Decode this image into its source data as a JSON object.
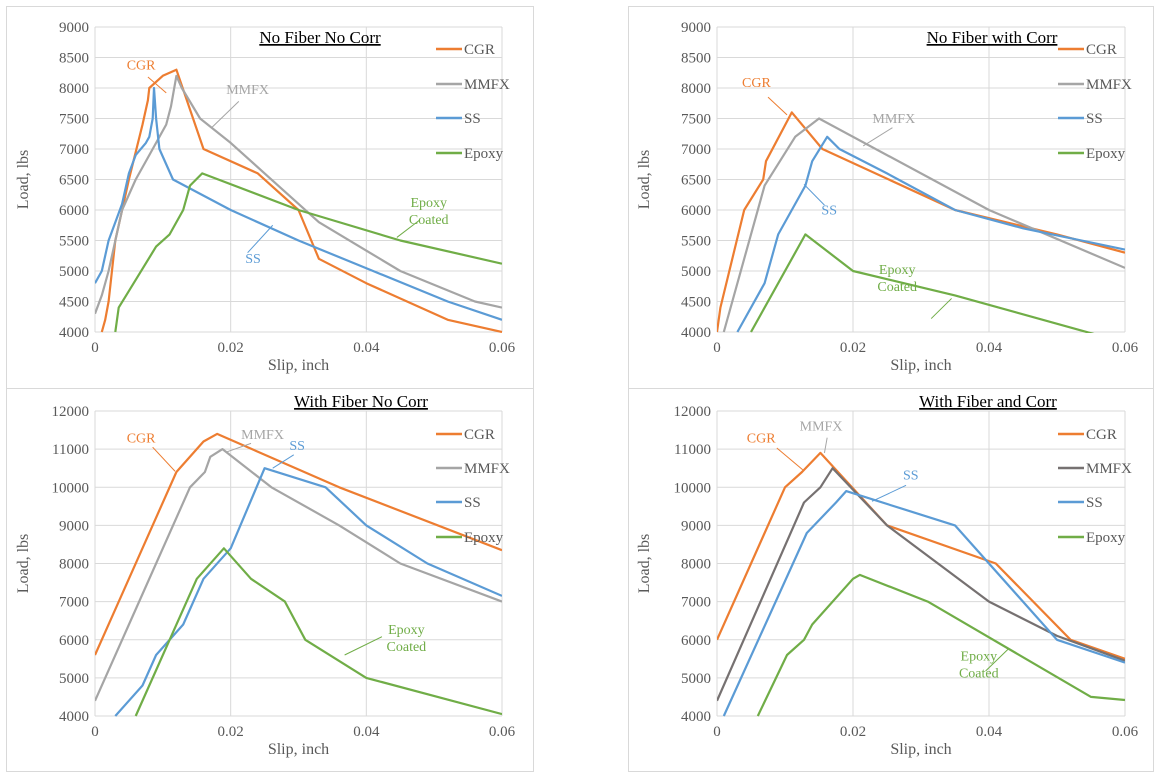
{
  "colors": {
    "CGR": "#ed7d31",
    "MMFX_light": "#a5a5a5",
    "MMFX_dark": "#767171",
    "SS": "#5b9bd5",
    "Epoxy": "#70ad47",
    "grid": "#d9d9d9",
    "text": "#595959"
  },
  "chart_data": [
    {
      "type": "line",
      "title": "No Fiber No Corr",
      "xlabel": "Slip, inch",
      "ylabel": "Load, lbs",
      "xlim": [
        0,
        0.06
      ],
      "ylim": [
        4000,
        9000
      ],
      "xticks": [
        0,
        0.02,
        0.04,
        0.06
      ],
      "xtick_labels": [
        "0",
        "0.02",
        "0.04",
        "0.06"
      ],
      "yticks": [
        4000,
        4500,
        5000,
        5500,
        6000,
        6500,
        7000,
        7500,
        8000,
        8500,
        9000
      ],
      "ytick_labels": [
        "4000",
        "4500",
        "5000",
        "5500",
        "6000",
        "6500",
        "7000",
        "7500",
        "8000",
        "8500",
        "9000"
      ],
      "grid": true,
      "legend_position": "right",
      "series": [
        {
          "name": "CGR",
          "color": "#ed7d31",
          "x": [
            0.001,
            0.0015,
            0.002,
            0.003,
            0.005,
            0.007,
            0.0078,
            0.008,
            0.01,
            0.012,
            0.016,
            0.024,
            0.03,
            0.033,
            0.04,
            0.052,
            0.06
          ],
          "y": [
            4000,
            4200,
            4500,
            5500,
            6500,
            7400,
            7800,
            8000,
            8200,
            8300,
            7000,
            6600,
            6000,
            5200,
            4800,
            4200,
            4000
          ]
        },
        {
          "name": "MMFX",
          "color": "#a5a5a5",
          "x": [
            0,
            0.001,
            0.002,
            0.004,
            0.006,
            0.008,
            0.0105,
            0.0112,
            0.012,
            0.0128,
            0.0155,
            0.02,
            0.027,
            0.033,
            0.045,
            0.056,
            0.06
          ],
          "y": [
            4300,
            4600,
            5000,
            6000,
            6500,
            6900,
            7400,
            7700,
            8200,
            8000,
            7500,
            7100,
            6400,
            5800,
            5000,
            4500,
            4400
          ]
        },
        {
          "name": "SS",
          "color": "#5b9bd5",
          "x": [
            0,
            0.001,
            0.002,
            0.004,
            0.005,
            0.006,
            0.0075,
            0.008,
            0.0085,
            0.0087,
            0.009,
            0.0095,
            0.0115,
            0.02,
            0.03,
            0.041,
            0.052,
            0.06
          ],
          "y": [
            4800,
            5000,
            5500,
            6100,
            6600,
            6900,
            7100,
            7200,
            7500,
            8000,
            7500,
            7000,
            6500,
            6000,
            5500,
            5000,
            4500,
            4200
          ]
        },
        {
          "name": "Epoxy",
          "color": "#70ad47",
          "x": [
            0.003,
            0.0035,
            0.009,
            0.011,
            0.013,
            0.014,
            0.0158,
            0.03,
            0.045,
            0.06
          ],
          "y": [
            4000,
            4400,
            5400,
            5600,
            6000,
            6400,
            6600,
            6000,
            5500,
            5120
          ]
        }
      ],
      "annotations": [
        {
          "text": "CGR",
          "color": "#ed7d31",
          "lines": [
            "CGR"
          ],
          "x": 0.0068,
          "y": 8300
        },
        {
          "text": "MMFX",
          "color": "#a5a5a5",
          "lines": [
            "MMFX"
          ],
          "x": 0.0225,
          "y": 7900
        },
        {
          "text": "SS",
          "color": "#5b9bd5",
          "lines": [
            "SS"
          ],
          "x": 0.0233,
          "y": 5130
        },
        {
          "text": "Epoxy Coated",
          "color": "#70ad47",
          "lines": [
            "Epoxy",
            "Coated"
          ],
          "x": 0.0492,
          "y": 6050
        }
      ],
      "leaders": [
        {
          "color": "#ed7d31",
          "x1": 0.0078,
          "y1": 8180,
          "x2": 0.0105,
          "y2": 7920
        },
        {
          "color": "#a5a5a5",
          "x1": 0.0212,
          "y1": 7780,
          "x2": 0.0172,
          "y2": 7350
        },
        {
          "color": "#5b9bd5",
          "x1": 0.0225,
          "y1": 5300,
          "x2": 0.0262,
          "y2": 5750
        },
        {
          "color": "#70ad47",
          "x1": 0.0478,
          "y1": 5830,
          "x2": 0.0445,
          "y2": 5550
        }
      ]
    },
    {
      "type": "line",
      "title": "No Fiber with Corr",
      "xlabel": "Slip, inch",
      "ylabel": "Load, lbs",
      "xlim": [
        0,
        0.06
      ],
      "ylim": [
        4000,
        9000
      ],
      "xticks": [
        0,
        0.02,
        0.04,
        0.06
      ],
      "xtick_labels": [
        "0",
        "0.02",
        "0.04",
        "0.06"
      ],
      "yticks": [
        4000,
        4500,
        5000,
        5500,
        6000,
        6500,
        7000,
        7500,
        8000,
        8500,
        9000
      ],
      "ytick_labels": [
        "4000",
        "4500",
        "5000",
        "5500",
        "6000",
        "6500",
        "7000",
        "7500",
        "8000",
        "8500",
        "9000"
      ],
      "grid": true,
      "legend_position": "right",
      "series": [
        {
          "name": "CGR",
          "color": "#ed7d31",
          "x": [
            0,
            0.0005,
            0.004,
            0.0068,
            0.0072,
            0.011,
            0.0155,
            0.035,
            0.05,
            0.06
          ],
          "y": [
            4000,
            4400,
            6000,
            6500,
            6800,
            7600,
            7000,
            6000,
            5600,
            5300
          ]
        },
        {
          "name": "MMFX",
          "color": "#a5a5a5",
          "x": [
            0.001,
            0.007,
            0.0115,
            0.015,
            0.04,
            0.06
          ],
          "y": [
            4000,
            6400,
            7200,
            7500,
            6000,
            5050
          ]
        },
        {
          "name": "SS",
          "color": "#5b9bd5",
          "x": [
            0.003,
            0.007,
            0.009,
            0.013,
            0.014,
            0.0162,
            0.018,
            0.025,
            0.035,
            0.045,
            0.06
          ],
          "y": [
            4000,
            4800,
            5600,
            6400,
            6800,
            7200,
            7000,
            6600,
            6000,
            5700,
            5350
          ]
        },
        {
          "name": "Epoxy",
          "color": "#70ad47",
          "x": [
            0.005,
            0.013,
            0.02,
            0.035,
            0.056
          ],
          "y": [
            4000,
            5600,
            5000,
            4600,
            3950
          ]
        }
      ],
      "annotations": [
        {
          "text": "CGR",
          "color": "#ed7d31",
          "lines": [
            "CGR"
          ],
          "x": 0.0058,
          "y": 8020
        },
        {
          "text": "MMFX",
          "color": "#a5a5a5",
          "lines": [
            "MMFX"
          ],
          "x": 0.026,
          "y": 7430
        },
        {
          "text": "SS",
          "color": "#5b9bd5",
          "lines": [
            "SS"
          ],
          "x": 0.0165,
          "y": 5930
        },
        {
          "text": "Epoxy Coated",
          "color": "#70ad47",
          "lines": [
            "Epoxy",
            "Coated"
          ],
          "x": 0.0265,
          "y": 4950
        }
      ],
      "leaders": [
        {
          "color": "#ed7d31",
          "x1": 0.0075,
          "y1": 7850,
          "x2": 0.0103,
          "y2": 7560
        },
        {
          "color": "#a5a5a5",
          "x1": 0.0258,
          "y1": 7350,
          "x2": 0.0215,
          "y2": 7050
        },
        {
          "color": "#5b9bd5",
          "x1": 0.0158,
          "y1": 6080,
          "x2": 0.0128,
          "y2": 6420
        },
        {
          "color": "#70ad47",
          "x1": 0.0315,
          "y1": 4220,
          "x2": 0.0345,
          "y2": 4550
        }
      ]
    },
    {
      "type": "line",
      "title": "With Fiber No Corr",
      "xlabel": "Slip, inch",
      "ylabel": "Load, lbs",
      "xlim": [
        0,
        0.06
      ],
      "ylim": [
        4000,
        12000
      ],
      "xticks": [
        0,
        0.02,
        0.04,
        0.06
      ],
      "xtick_labels": [
        "0",
        "0.02",
        "0.04",
        "0.06"
      ],
      "yticks": [
        4000,
        5000,
        6000,
        7000,
        8000,
        9000,
        10000,
        11000,
        12000
      ],
      "ytick_labels": [
        "4000",
        "5000",
        "6000",
        "7000",
        "8000",
        "9000",
        "10000",
        "11000",
        "12000"
      ],
      "grid": true,
      "legend_position": "right",
      "series": [
        {
          "name": "CGR",
          "color": "#ed7d31",
          "x": [
            0,
            0.012,
            0.016,
            0.018,
            0.036,
            0.06
          ],
          "y": [
            5600,
            10400,
            11200,
            11400,
            10000,
            8350
          ]
        },
        {
          "name": "MMFX",
          "color": "#a5a5a5",
          "x": [
            0,
            0.014,
            0.0162,
            0.017,
            0.0188,
            0.026,
            0.036,
            0.045,
            0.06
          ],
          "y": [
            4400,
            10000,
            10400,
            10800,
            11000,
            10000,
            9000,
            8000,
            7000
          ]
        },
        {
          "name": "SS",
          "color": "#5b9bd5",
          "x": [
            0.003,
            0.007,
            0.009,
            0.013,
            0.016,
            0.02,
            0.025,
            0.034,
            0.04,
            0.049,
            0.06
          ],
          "y": [
            4000,
            4800,
            5600,
            6400,
            7600,
            8400,
            10500,
            10000,
            9000,
            8000,
            7150
          ]
        },
        {
          "name": "Epoxy",
          "color": "#70ad47",
          "x": [
            0.006,
            0.015,
            0.019,
            0.023,
            0.028,
            0.031,
            0.04,
            0.06
          ],
          "y": [
            4000,
            7600,
            8400,
            7600,
            7000,
            6000,
            5000,
            4050
          ]
        }
      ],
      "annotations": [
        {
          "text": "CGR",
          "color": "#ed7d31",
          "lines": [
            "CGR"
          ],
          "x": 0.0068,
          "y": 11180
        },
        {
          "text": "MMFX",
          "color": "#a5a5a5",
          "lines": [
            "MMFX"
          ],
          "x": 0.0247,
          "y": 11270
        },
        {
          "text": "SS",
          "color": "#5b9bd5",
          "lines": [
            "SS"
          ],
          "x": 0.0298,
          "y": 10980
        },
        {
          "text": "Epoxy Coated",
          "color": "#70ad47",
          "lines": [
            "Epoxy",
            "Coated"
          ],
          "x": 0.0459,
          "y": 6150
        }
      ],
      "leaders": [
        {
          "color": "#ed7d31",
          "x1": 0.0085,
          "y1": 11050,
          "x2": 0.0118,
          "y2": 10420
        },
        {
          "color": "#a5a5a5",
          "x1": 0.023,
          "y1": 11150,
          "x2": 0.0193,
          "y2": 10920
        },
        {
          "color": "#5b9bd5",
          "x1": 0.0293,
          "y1": 10850,
          "x2": 0.0262,
          "y2": 10500
        },
        {
          "color": "#70ad47",
          "x1": 0.0423,
          "y1": 6080,
          "x2": 0.0368,
          "y2": 5600
        }
      ]
    },
    {
      "type": "line",
      "title": "With Fiber and Corr",
      "xlabel": "Slip, inch",
      "ylabel": "Load, lbs",
      "xlim": [
        0,
        0.06
      ],
      "ylim": [
        4000,
        12000
      ],
      "xticks": [
        0,
        0.02,
        0.04,
        0.06
      ],
      "xtick_labels": [
        "0",
        "0.02",
        "0.04",
        "0.06"
      ],
      "yticks": [
        4000,
        5000,
        6000,
        7000,
        8000,
        9000,
        10000,
        11000,
        12000
      ],
      "ytick_labels": [
        "4000",
        "5000",
        "6000",
        "7000",
        "8000",
        "9000",
        "10000",
        "11000",
        "12000"
      ],
      "grid": true,
      "legend_position": "right",
      "series": [
        {
          "name": "CGR",
          "color": "#ed7d31",
          "x": [
            0,
            0.01,
            0.0125,
            0.0152,
            0.025,
            0.041,
            0.052,
            0.06
          ],
          "y": [
            6000,
            10000,
            10400,
            10900,
            9000,
            8000,
            6000,
            5500
          ]
        },
        {
          "name": "MMFX",
          "color": "#767171",
          "x": [
            0,
            0.0128,
            0.0152,
            0.017,
            0.025,
            0.04,
            0.05,
            0.06
          ],
          "y": [
            4400,
            9600,
            10000,
            10500,
            9000,
            7000,
            6100,
            5450
          ]
        },
        {
          "name": "SS",
          "color": "#5b9bd5",
          "x": [
            0.001,
            0.0132,
            0.0175,
            0.019,
            0.035,
            0.05,
            0.06
          ],
          "y": [
            4000,
            8800,
            9600,
            9900,
            9000,
            6000,
            5400
          ]
        },
        {
          "name": "Epoxy",
          "color": "#70ad47",
          "x": [
            0.006,
            0.0103,
            0.0128,
            0.014,
            0.02,
            0.021,
            0.031,
            0.055,
            0.06
          ],
          "y": [
            4000,
            5600,
            6000,
            6400,
            7600,
            7700,
            7000,
            4500,
            4420
          ]
        }
      ],
      "annotations": [
        {
          "text": "CGR",
          "color": "#ed7d31",
          "lines": [
            "CGR"
          ],
          "x": 0.0065,
          "y": 11180
        },
        {
          "text": "MMFX",
          "color": "#a5a5a5",
          "lines": [
            "MMFX"
          ],
          "x": 0.0153,
          "y": 11490
        },
        {
          "text": "SS",
          "color": "#5b9bd5",
          "lines": [
            "SS"
          ],
          "x": 0.0285,
          "y": 10200
        },
        {
          "text": "Epoxy Coated",
          "color": "#70ad47",
          "lines": [
            "Epoxy",
            "Coated"
          ],
          "x": 0.0385,
          "y": 5450
        }
      ],
      "leaders": [
        {
          "color": "#ed7d31",
          "x1": 0.0088,
          "y1": 11030,
          "x2": 0.0126,
          "y2": 10460
        },
        {
          "color": "#a5a5a5",
          "x1": 0.0162,
          "y1": 11300,
          "x2": 0.0158,
          "y2": 10900
        },
        {
          "color": "#5b9bd5",
          "x1": 0.0278,
          "y1": 10050,
          "x2": 0.0228,
          "y2": 9630
        },
        {
          "color": "#70ad47",
          "x1": 0.0395,
          "y1": 5180,
          "x2": 0.0428,
          "y2": 5750
        }
      ]
    }
  ]
}
